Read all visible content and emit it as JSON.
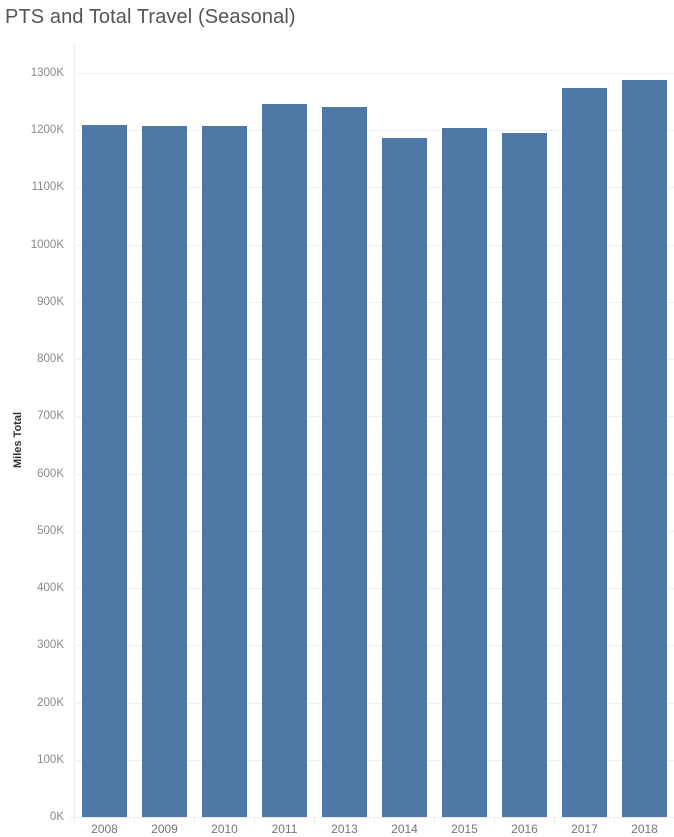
{
  "title": "PTS and Total Travel (Seasonal)",
  "chart_data": {
    "type": "bar",
    "title": "PTS and Total Travel (Seasonal)",
    "xlabel": "",
    "ylabel": "Miles Total",
    "categories": [
      "2008",
      "2009",
      "2010",
      "2011",
      "2013",
      "2014",
      "2015",
      "2016",
      "2017",
      "2018"
    ],
    "values": [
      1209000,
      1207000,
      1207000,
      1246000,
      1241000,
      1186000,
      1204000,
      1195000,
      1274000,
      1288000
    ],
    "ylim": [
      0,
      1300000
    ],
    "yticks": [
      "0K",
      "100K",
      "200K",
      "300K",
      "400K",
      "500K",
      "600K",
      "700K",
      "800K",
      "900K",
      "1000K",
      "1100K",
      "1200K",
      "1300K"
    ],
    "grid": true,
    "bar_color": "#4e79a7",
    "legend": null
  }
}
